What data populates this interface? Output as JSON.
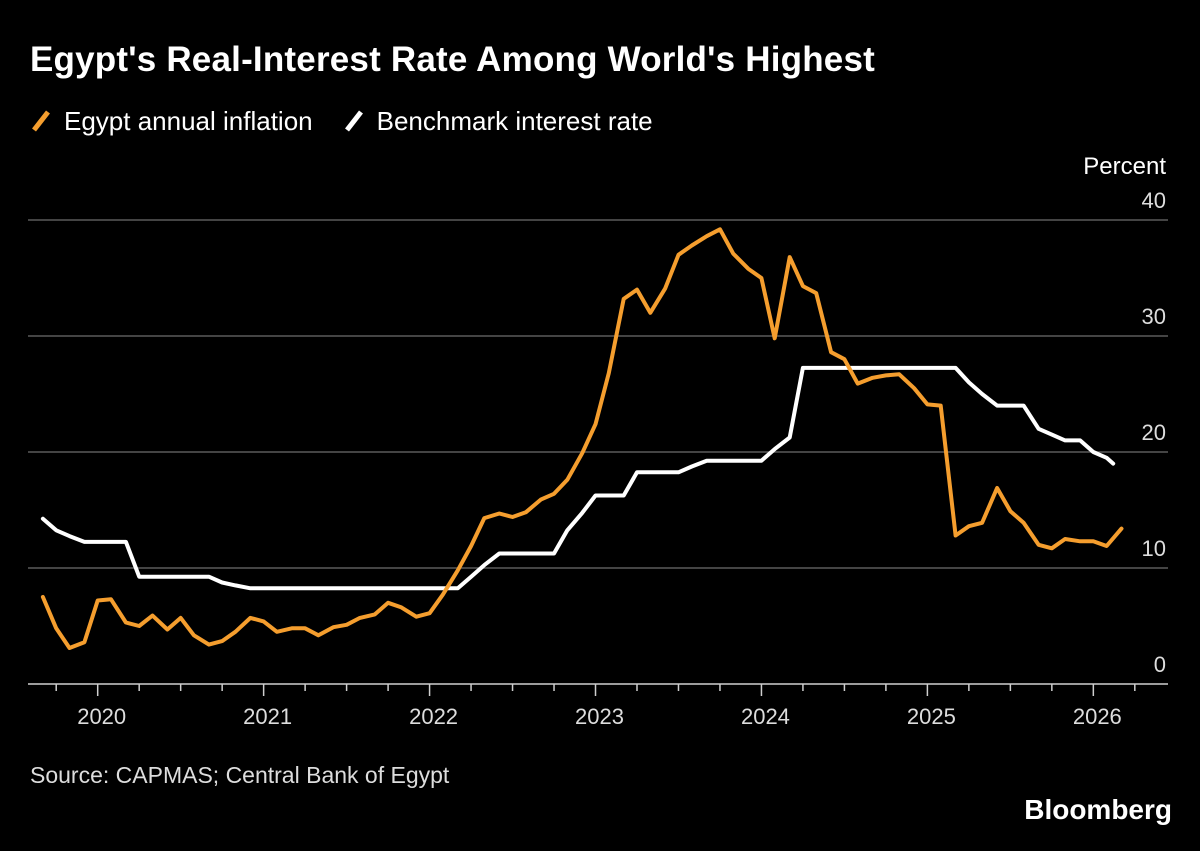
{
  "title": "Egypt's Real-Interest Rate Among World's Highest",
  "legend": [
    {
      "label": "Egypt annual inflation",
      "color": "#f59e2e"
    },
    {
      "label": "Benchmark interest rate",
      "color": "#ffffff"
    }
  ],
  "source": "Source: CAPMAS; Central Bank of Egypt",
  "brand": "Bloomberg",
  "chart_data": {
    "type": "line",
    "ylabel": "Percent",
    "ylim": [
      0,
      40
    ],
    "yticks": [
      0,
      10,
      20,
      30,
      40
    ],
    "xlim": [
      2019.58,
      2026.45
    ],
    "xticks": [
      2020,
      2021,
      2022,
      2023,
      2024,
      2025,
      2026
    ],
    "xticklabels": [
      "2020",
      "2021",
      "2022",
      "2023",
      "2024",
      "2025",
      "2026"
    ],
    "grid": true,
    "series": [
      {
        "name": "Egypt annual inflation",
        "color": "#f59e2e",
        "x": [
          2019.67,
          2019.75,
          2019.83,
          2019.92,
          2020.0,
          2020.08,
          2020.17,
          2020.25,
          2020.33,
          2020.42,
          2020.5,
          2020.58,
          2020.67,
          2020.75,
          2020.83,
          2020.92,
          2021.0,
          2021.08,
          2021.17,
          2021.25,
          2021.33,
          2021.42,
          2021.5,
          2021.58,
          2021.67,
          2021.75,
          2021.83,
          2021.92,
          2022.0,
          2022.08,
          2022.17,
          2022.25,
          2022.33,
          2022.42,
          2022.5,
          2022.58,
          2022.67,
          2022.75,
          2022.83,
          2022.92,
          2023.0,
          2023.08,
          2023.17,
          2023.25,
          2023.33,
          2023.42,
          2023.5,
          2023.58,
          2023.67,
          2023.75,
          2023.83,
          2023.92,
          2024.0,
          2024.08,
          2024.17,
          2024.25,
          2024.33,
          2024.42,
          2024.5,
          2024.58,
          2024.67,
          2024.75,
          2024.83,
          2024.92,
          2025.0,
          2025.08,
          2025.17,
          2025.25,
          2025.33,
          2025.42,
          2025.5,
          2025.58,
          2025.67,
          2025.75,
          2025.83,
          2025.92,
          2026.0,
          2026.08,
          2026.17
        ],
        "values": [
          7.5,
          4.8,
          3.1,
          3.6,
          7.2,
          7.3,
          5.3,
          5.0,
          5.9,
          4.7,
          5.7,
          4.2,
          3.4,
          3.7,
          4.5,
          5.7,
          5.4,
          4.5,
          4.8,
          4.8,
          4.2,
          4.9,
          5.1,
          5.7,
          6.0,
          7.0,
          6.6,
          5.8,
          6.1,
          7.7,
          9.8,
          11.9,
          14.3,
          14.7,
          14.4,
          14.8,
          15.9,
          16.4,
          17.6,
          19.9,
          22.4,
          26.8,
          33.2,
          34.0,
          32.0,
          34.1,
          37.0,
          37.8,
          38.6,
          39.2,
          37.1,
          35.8,
          35.0,
          29.8,
          36.8,
          34.3,
          33.7,
          28.6,
          28.0,
          25.9,
          26.4,
          26.6,
          26.7,
          25.5,
          24.1,
          24.0,
          12.8,
          13.6,
          13.9,
          16.9,
          14.9,
          13.9,
          12.0,
          11.7,
          12.5,
          12.3,
          12.3,
          11.9,
          13.4
        ]
      },
      {
        "name": "Benchmark interest rate",
        "color": "#ffffff",
        "x": [
          2019.67,
          2019.75,
          2019.83,
          2019.92,
          2020.0,
          2020.08,
          2020.17,
          2020.25,
          2020.33,
          2020.42,
          2020.5,
          2020.58,
          2020.67,
          2020.75,
          2020.83,
          2020.92,
          2021.0,
          2021.08,
          2021.17,
          2021.25,
          2021.33,
          2021.42,
          2021.5,
          2021.58,
          2021.67,
          2021.75,
          2021.83,
          2021.92,
          2022.0,
          2022.08,
          2022.17,
          2022.25,
          2022.33,
          2022.42,
          2022.5,
          2022.58,
          2022.67,
          2022.75,
          2022.83,
          2022.92,
          2023.0,
          2023.08,
          2023.17,
          2023.25,
          2023.33,
          2023.42,
          2023.5,
          2023.58,
          2023.67,
          2023.75,
          2023.83,
          2023.92,
          2024.0,
          2024.08,
          2024.17,
          2024.25,
          2024.33,
          2024.42,
          2024.5,
          2024.58,
          2024.67,
          2024.75,
          2024.83,
          2024.92,
          2025.0,
          2025.08,
          2025.17,
          2025.25,
          2025.33,
          2025.42,
          2025.5,
          2025.58,
          2025.67,
          2025.75,
          2025.83,
          2025.92,
          2026.0,
          2026.08,
          2026.12
        ],
        "values": [
          14.25,
          13.25,
          12.75,
          12.25,
          12.25,
          12.25,
          12.25,
          9.25,
          9.25,
          9.25,
          9.25,
          9.25,
          9.25,
          8.75,
          8.5,
          8.25,
          8.25,
          8.25,
          8.25,
          8.25,
          8.25,
          8.25,
          8.25,
          8.25,
          8.25,
          8.25,
          8.25,
          8.25,
          8.25,
          8.25,
          8.25,
          9.25,
          10.25,
          11.25,
          11.25,
          11.25,
          11.25,
          11.25,
          13.25,
          14.75,
          16.25,
          16.25,
          16.25,
          18.25,
          18.25,
          18.25,
          18.25,
          18.75,
          19.25,
          19.25,
          19.25,
          19.25,
          19.25,
          20.25,
          21.25,
          27.25,
          27.25,
          27.25,
          27.25,
          27.25,
          27.25,
          27.25,
          27.25,
          27.25,
          27.25,
          27.25,
          27.25,
          26.0,
          25.0,
          24.0,
          24.0,
          24.0,
          22.0,
          21.5,
          21.0,
          21.0,
          20.0,
          19.5,
          19.0
        ]
      }
    ]
  }
}
